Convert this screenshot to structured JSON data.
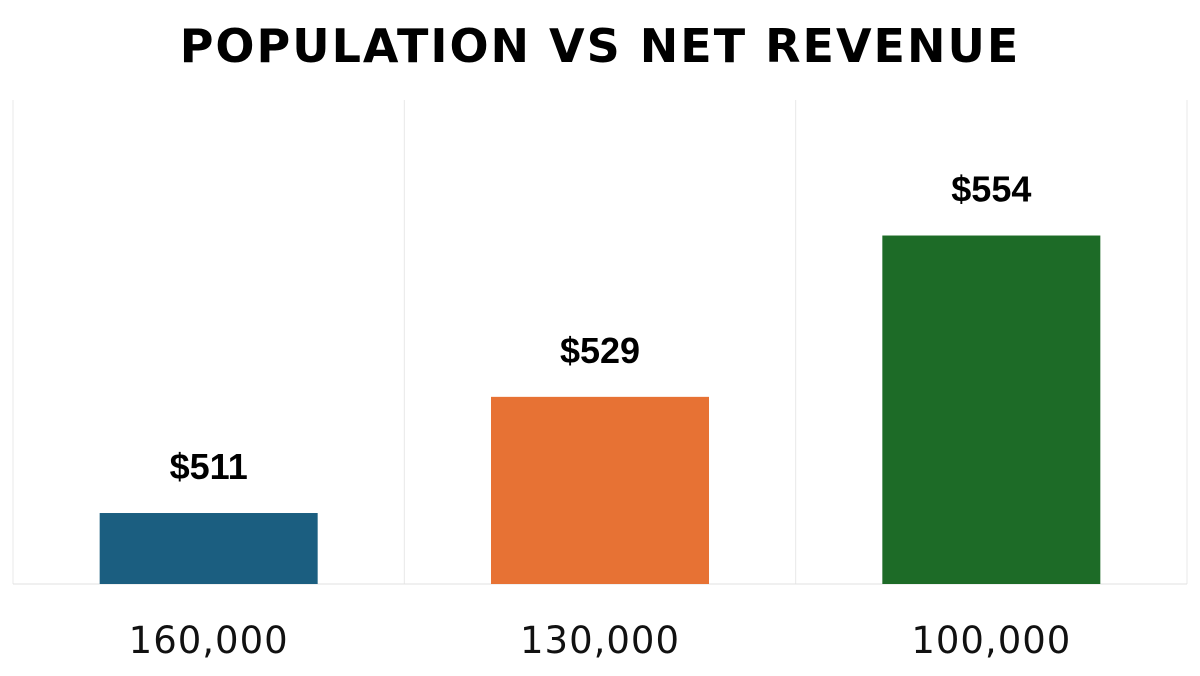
{
  "chart_data": {
    "type": "bar",
    "title": "POPULATION VS NET REVENUE",
    "xlabel": "",
    "ylabel": "",
    "categories": [
      "160,000",
      "130,000",
      "100,000"
    ],
    "values": [
      511,
      529,
      554
    ],
    "data_labels": [
      "$511",
      "$529",
      "$554"
    ],
    "colors": [
      "#1b5e80",
      "#e77234",
      "#1d6b27"
    ],
    "ylim": [
      500,
      575
    ],
    "grid": "vertical separators",
    "legend": "none"
  }
}
